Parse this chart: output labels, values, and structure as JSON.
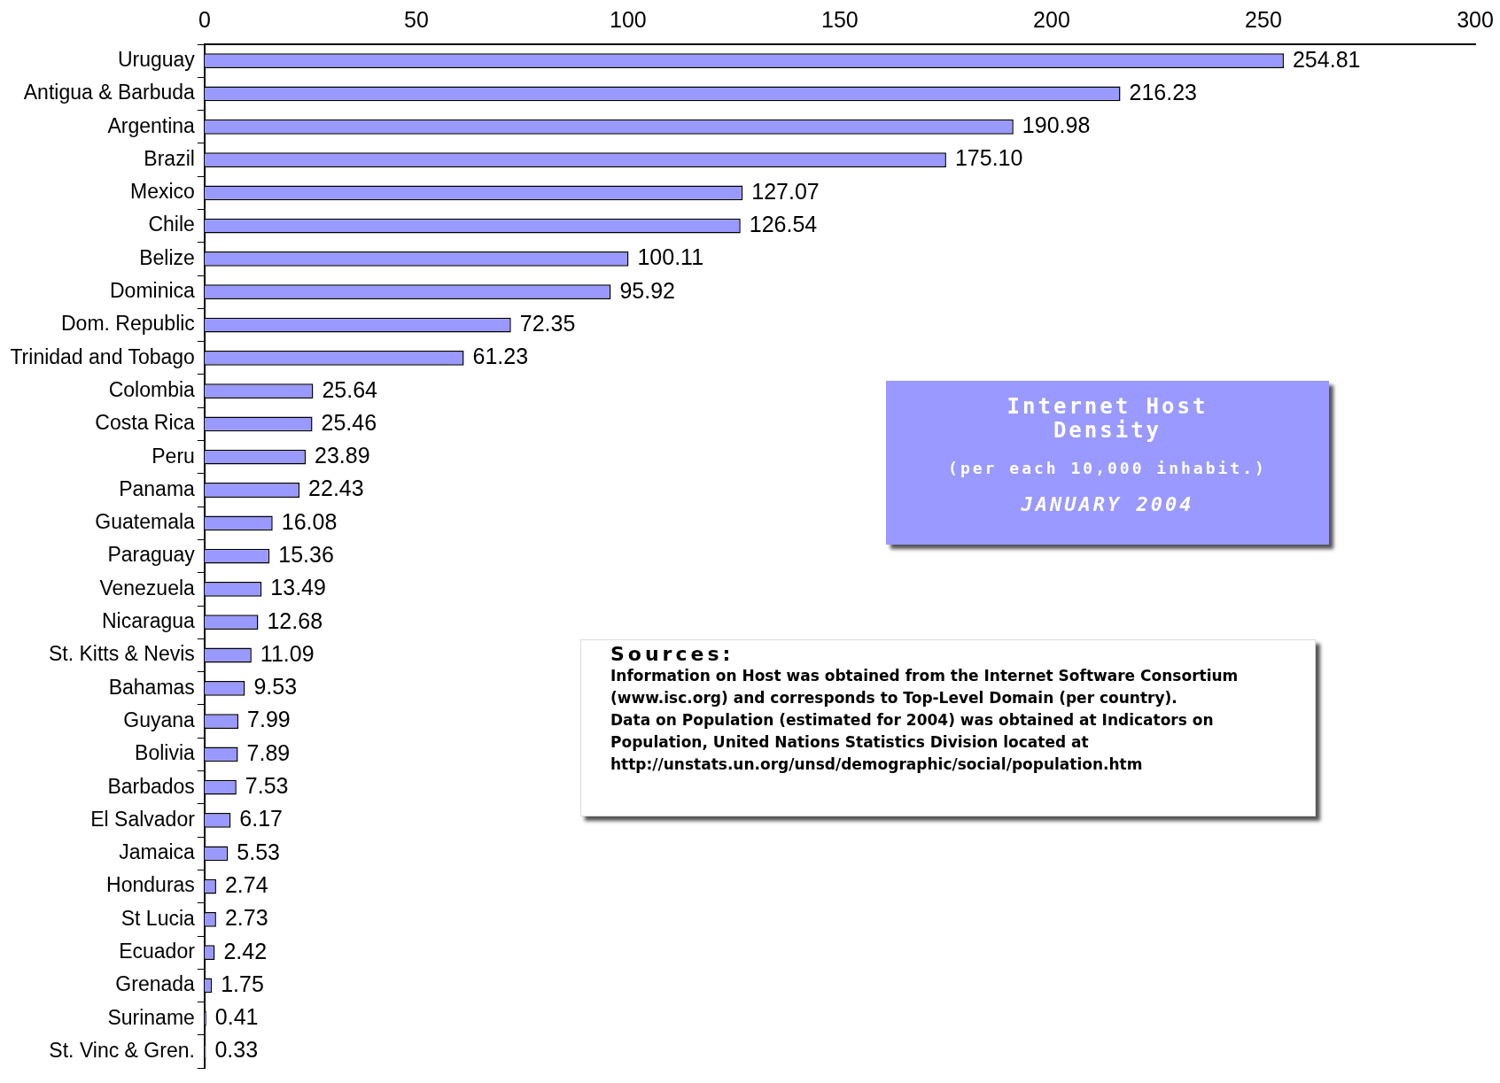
{
  "chart_data": {
    "type": "bar",
    "orientation": "horizontal",
    "title": "Internet Host Density",
    "subtitle": "(per each 10,000 inhabit.)",
    "categories": [
      "Uruguay",
      "Antigua & Barbuda",
      "Argentina",
      "Brazil",
      "Mexico",
      "Chile",
      "Belize",
      "Dominica",
      "Dom. Republic",
      "Trinidad and Tobago",
      "Colombia",
      "Costa Rica",
      "Peru",
      "Panama",
      "Guatemala",
      "Paraguay",
      "Venezuela",
      "Nicaragua",
      "St. Kitts & Nevis",
      "Bahamas",
      "Guyana",
      "Bolivia",
      "Barbados",
      "El Salvador",
      "Jamaica",
      "Honduras",
      "St Lucia",
      "Ecuador",
      "Grenada",
      "Suriname",
      "St. Vinc & Gren."
    ],
    "values": [
      254.81,
      216.23,
      190.98,
      175.1,
      127.07,
      126.54,
      100.11,
      95.92,
      72.35,
      61.23,
      25.64,
      25.46,
      23.89,
      22.43,
      16.08,
      15.36,
      13.49,
      12.68,
      11.09,
      9.53,
      7.99,
      7.89,
      7.53,
      6.17,
      5.53,
      2.74,
      2.73,
      2.42,
      1.75,
      0.41,
      0.33
    ],
    "value_labels": [
      "254.81",
      "216.23",
      "190.98",
      "175.10",
      "127.07",
      "126.54",
      "100.11",
      "95.92",
      "72.35",
      "61.23",
      "25.64",
      "25.46",
      "23.89",
      "22.43",
      "16.08",
      "15.36",
      "13.49",
      "12.68",
      "11.09",
      "9.53",
      "7.99",
      "7.89",
      "7.53",
      "6.17",
      "5.53",
      "2.74",
      "2.73",
      "2.42",
      "1.75",
      "0.41",
      "0.33"
    ],
    "color": "#9999ff",
    "xlim": [
      0,
      300
    ],
    "xticks": [
      0,
      50,
      100,
      150,
      200,
      250,
      300
    ],
    "grid": false,
    "legend": false,
    "annotations": [
      "JANUARY 2004",
      "Sources:",
      "Information on Host was obtained from the Internet Software Consortium (www.isc.org) and corresponds to Top-Level Domain (per country).",
      "Data on Population (estimated for 2004) was obtained at Indicators on Population, United Nations Statistics Division located at http://unstats.un.org/unsd/demographic/social/population.htm"
    ]
  }
}
